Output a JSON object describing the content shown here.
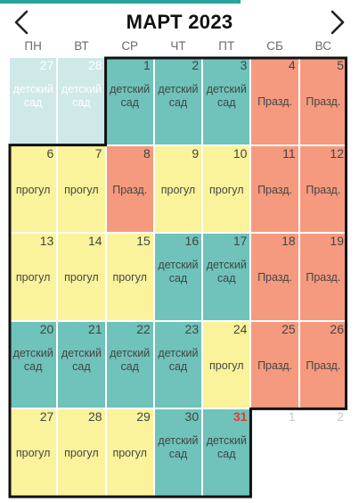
{
  "header": {
    "title": "МАРТ 2023",
    "prev_icon": "chevron-left-icon",
    "next_icon": "chevron-right-icon"
  },
  "weekdays": [
    "ПН",
    "ВТ",
    "СР",
    "ЧТ",
    "ПТ",
    "СБ",
    "ВС"
  ],
  "colors": {
    "kindergarten": "#6fc3ba",
    "skip": "#fbf39b",
    "holiday": "#f59a7e",
    "prev_month": "#cfe8e8",
    "accent": "#26a69a",
    "today": "#e53935"
  },
  "days": [
    {
      "day": "27",
      "label": "детский сад",
      "type": "prevm"
    },
    {
      "day": "28",
      "label": "детский сад",
      "type": "prevm"
    },
    {
      "day": "1",
      "label": "детский сад",
      "type": "kg"
    },
    {
      "day": "2",
      "label": "детский сад",
      "type": "kg"
    },
    {
      "day": "3",
      "label": "детский сад",
      "type": "kg"
    },
    {
      "day": "4",
      "label": "Празд.",
      "type": "hol"
    },
    {
      "day": "5",
      "label": "Празд.",
      "type": "hol"
    },
    {
      "day": "6",
      "label": "прогул",
      "type": "skip"
    },
    {
      "day": "7",
      "label": "прогул",
      "type": "skip"
    },
    {
      "day": "8",
      "label": "Празд.",
      "type": "hol"
    },
    {
      "day": "9",
      "label": "прогул",
      "type": "skip"
    },
    {
      "day": "10",
      "label": "прогул",
      "type": "skip"
    },
    {
      "day": "11",
      "label": "Празд.",
      "type": "hol"
    },
    {
      "day": "12",
      "label": "Празд.",
      "type": "hol"
    },
    {
      "day": "13",
      "label": "прогул",
      "type": "skip"
    },
    {
      "day": "14",
      "label": "прогул",
      "type": "skip"
    },
    {
      "day": "15",
      "label": "прогул",
      "type": "skip"
    },
    {
      "day": "16",
      "label": "детский сад",
      "type": "kg"
    },
    {
      "day": "17",
      "label": "детский сад",
      "type": "kg"
    },
    {
      "day": "18",
      "label": "Празд.",
      "type": "hol"
    },
    {
      "day": "19",
      "label": "Празд.",
      "type": "hol"
    },
    {
      "day": "20",
      "label": "детский сад",
      "type": "kg"
    },
    {
      "day": "21",
      "label": "детский сад",
      "type": "kg"
    },
    {
      "day": "22",
      "label": "детский сад",
      "type": "kg"
    },
    {
      "day": "23",
      "label": "детский сад",
      "type": "kg"
    },
    {
      "day": "24",
      "label": "прогул",
      "type": "skip"
    },
    {
      "day": "25",
      "label": "Празд.",
      "type": "hol"
    },
    {
      "day": "26",
      "label": "Празд.",
      "type": "hol"
    },
    {
      "day": "27",
      "label": "прогул",
      "type": "skip"
    },
    {
      "day": "28",
      "label": "прогул",
      "type": "skip"
    },
    {
      "day": "29",
      "label": "прогул",
      "type": "skip"
    },
    {
      "day": "30",
      "label": "детский сад",
      "type": "kg"
    },
    {
      "day": "31",
      "label": "детский сад",
      "type": "kg",
      "today": true
    },
    {
      "day": "1",
      "label": "",
      "type": "next"
    },
    {
      "day": "2",
      "label": "",
      "type": "next"
    }
  ]
}
